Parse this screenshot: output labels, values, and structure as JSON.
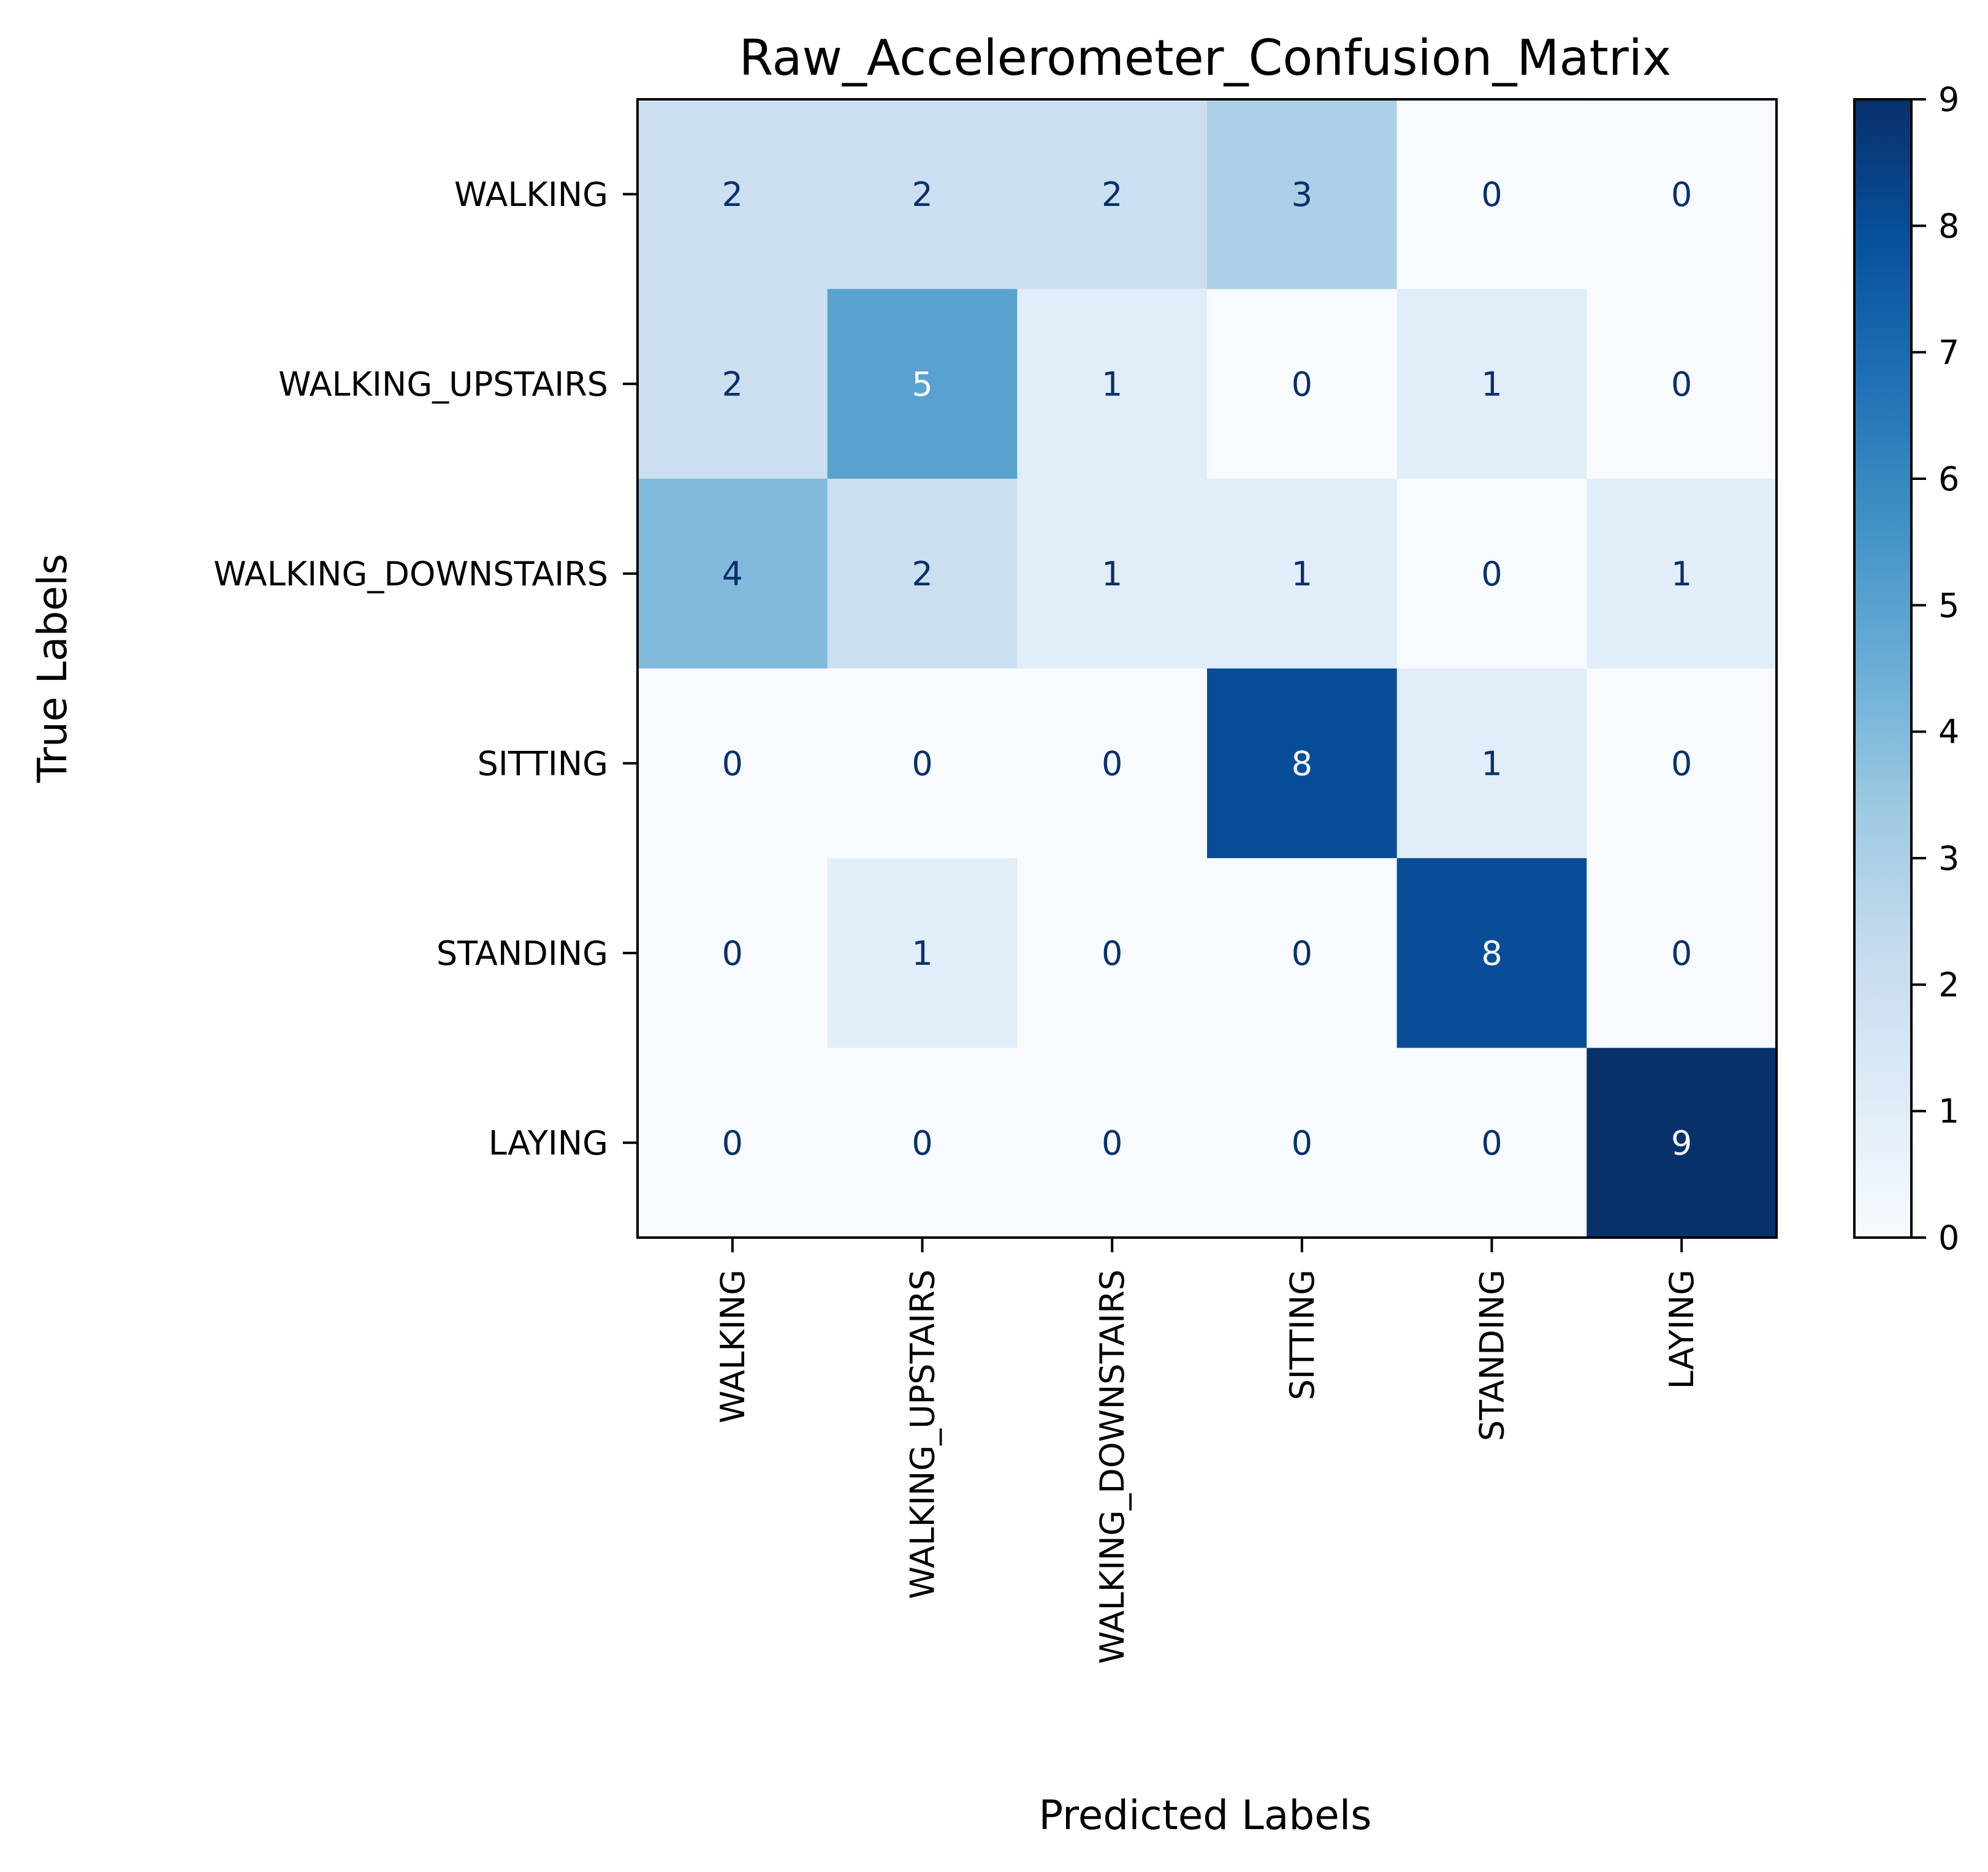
{
  "chart_data": {
    "type": "heatmap",
    "title": "Raw_Accelerometer_Confusion_Matrix",
    "xlabel": "Predicted Labels",
    "ylabel": "True Labels",
    "x_categories": [
      "WALKING",
      "WALKING_UPSTAIRS",
      "WALKING_DOWNSTAIRS",
      "SITTING",
      "STANDING",
      "LAYING"
    ],
    "y_categories": [
      "WALKING",
      "WALKING_UPSTAIRS",
      "WALKING_DOWNSTAIRS",
      "SITTING",
      "STANDING",
      "LAYING"
    ],
    "values": [
      [
        2,
        2,
        2,
        3,
        0,
        0
      ],
      [
        2,
        5,
        1,
        0,
        1,
        0
      ],
      [
        4,
        2,
        1,
        1,
        0,
        1
      ],
      [
        0,
        0,
        0,
        8,
        1,
        0
      ],
      [
        0,
        1,
        0,
        0,
        8,
        0
      ],
      [
        0,
        0,
        0,
        0,
        0,
        9
      ]
    ],
    "colormap": "Blues",
    "colorbar": {
      "min": 0,
      "max": 9,
      "ticks": [
        "0",
        "1",
        "2",
        "3",
        "4",
        "5",
        "6",
        "7",
        "8",
        "9"
      ]
    },
    "grid": false,
    "legend": "none",
    "colors": {
      "low": "#f7fbff",
      "high": "#08306b"
    }
  }
}
